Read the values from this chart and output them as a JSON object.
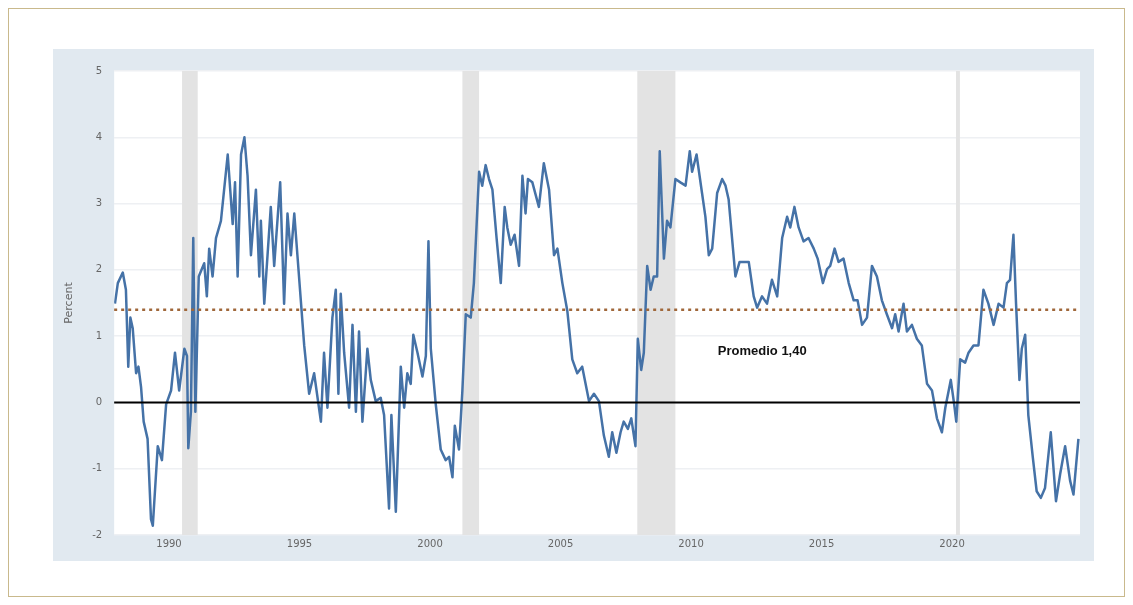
{
  "chart_data": {
    "type": "line",
    "ylabel": "Percent",
    "xlim": [
      1987.9,
      2024.9
    ],
    "xticks": [
      1990,
      1995,
      2000,
      2005,
      2010,
      2015,
      2020
    ],
    "ylim": [
      -2,
      5
    ],
    "yticks": [
      -2,
      -1,
      0,
      1,
      2,
      3,
      4,
      5
    ],
    "grid": "y",
    "legend": false,
    "bands": [
      {
        "axis": "x",
        "from": 1990.5,
        "to": 1991.1,
        "color": "#e3e3e3"
      },
      {
        "axis": "x",
        "from": 2001.24,
        "to": 2001.88,
        "color": "#e3e3e3"
      },
      {
        "axis": "x",
        "from": 2007.94,
        "to": 2009.4,
        "color": "#e3e3e3"
      },
      {
        "axis": "x",
        "from": 2020.15,
        "to": 2020.3,
        "color": "#e3e3e3"
      }
    ],
    "ref_lines": [
      {
        "axis": "y",
        "value": 0,
        "color": "#000000",
        "line_style": "solid"
      },
      {
        "axis": "y",
        "value": 1.4,
        "label": "Promedio 1,40",
        "color": "#a0673a",
        "line_style": "dotted"
      }
    ],
    "series": [
      {
        "color": "#4572a7",
        "x": [
          1987.93,
          1988.04,
          1988.23,
          1988.35,
          1988.44,
          1988.52,
          1988.61,
          1988.74,
          1988.83,
          1988.93,
          1989.03,
          1989.18,
          1989.31,
          1989.38,
          1989.57,
          1989.73,
          1989.89,
          1990.08,
          1990.23,
          1990.39,
          1990.59,
          1990.69,
          1990.74,
          1990.84,
          1990.93,
          1991.01,
          1991.14,
          1991.35,
          1991.45,
          1991.54,
          1991.67,
          1991.8,
          1991.99,
          1992.25,
          1992.44,
          1992.53,
          1992.63,
          1992.76,
          1992.89,
          1993.01,
          1993.14,
          1993.33,
          1993.46,
          1993.52,
          1993.65,
          1993.9,
          1994.03,
          1994.26,
          1994.41,
          1994.54,
          1994.67,
          1994.8,
          1994.92,
          1995.18,
          1995.37,
          1995.56,
          1995.82,
          1995.94,
          1996.07,
          1996.26,
          1996.39,
          1996.49,
          1996.58,
          1996.71,
          1996.9,
          1997.03,
          1997.16,
          1997.28,
          1997.41,
          1997.6,
          1997.73,
          1997.92,
          1998.11,
          1998.24,
          1998.43,
          1998.52,
          1998.69,
          1998.88,
          1999.01,
          1999.13,
          1999.26,
          1999.36,
          1999.52,
          1999.71,
          1999.84,
          1999.94,
          2000.03,
          2000.22,
          2000.41,
          2000.6,
          2000.73,
          2000.86,
          2000.95,
          2001.11,
          2001.24,
          2001.37,
          2001.56,
          2001.68,
          2001.88,
          2002.0,
          2002.13,
          2002.26,
          2002.39,
          2002.55,
          2002.71,
          2002.86,
          2002.96,
          2003.09,
          2003.24,
          2003.41,
          2003.54,
          2003.66,
          2003.75,
          2003.92,
          2004.17,
          2004.36,
          2004.56,
          2004.75,
          2004.88,
          2005.07,
          2005.26,
          2005.45,
          2005.64,
          2005.83,
          2006.09,
          2006.28,
          2006.47,
          2006.66,
          2006.85,
          2006.98,
          2007.14,
          2007.3,
          2007.42,
          2007.58,
          2007.71,
          2007.87,
          2007.96,
          2008.09,
          2008.19,
          2008.32,
          2008.45,
          2008.57,
          2008.7,
          2008.8,
          2008.96,
          2009.08,
          2009.21,
          2009.4,
          2009.59,
          2009.79,
          2009.95,
          2010.04,
          2010.21,
          2010.42,
          2010.55,
          2010.68,
          2010.81,
          2011.0,
          2011.19,
          2011.32,
          2011.44,
          2011.7,
          2011.86,
          2012.21,
          2012.4,
          2012.53,
          2012.72,
          2012.91,
          2013.1,
          2013.3,
          2013.49,
          2013.68,
          2013.8,
          2013.96,
          2014.12,
          2014.31,
          2014.5,
          2014.7,
          2014.85,
          2015.05,
          2015.21,
          2015.33,
          2015.5,
          2015.65,
          2015.84,
          2016.04,
          2016.23,
          2016.38,
          2016.55,
          2016.74,
          2016.93,
          2017.12,
          2017.31,
          2017.5,
          2017.7,
          2017.82,
          2017.95,
          2018.14,
          2018.27,
          2018.46,
          2018.65,
          2018.84,
          2019.04,
          2019.23,
          2019.42,
          2019.61,
          2019.74,
          2019.95,
          2020.08,
          2020.16,
          2020.31,
          2020.5,
          2020.63,
          2020.82,
          2021.01,
          2021.2,
          2021.39,
          2021.59,
          2021.78,
          2021.97,
          2022.1,
          2022.22,
          2022.35,
          2022.45,
          2022.58,
          2022.67,
          2022.8,
          2022.92,
          2023.09,
          2023.24,
          2023.4,
          2023.56,
          2023.78,
          2023.98,
          2024.14,
          2024.33,
          2024.52,
          2024.65,
          2024.84
        ],
        "values": [
          1.49,
          1.8,
          1.96,
          1.7,
          0.54,
          1.28,
          1.12,
          0.44,
          0.54,
          0.23,
          -0.29,
          -0.55,
          -1.76,
          -1.86,
          -0.66,
          -0.87,
          -0.03,
          0.18,
          0.75,
          0.18,
          0.81,
          0.7,
          -0.69,
          -0.14,
          2.48,
          -0.14,
          1.9,
          2.1,
          1.6,
          2.32,
          1.9,
          2.48,
          2.74,
          3.74,
          2.69,
          3.32,
          1.9,
          3.74,
          4.0,
          3.42,
          2.22,
          3.21,
          1.9,
          2.74,
          1.49,
          2.95,
          2.06,
          3.32,
          1.49,
          2.85,
          2.22,
          2.85,
          2.22,
          0.86,
          0.13,
          0.44,
          -0.29,
          0.75,
          -0.08,
          1.28,
          1.7,
          0.13,
          1.64,
          0.75,
          -0.08,
          1.17,
          -0.14,
          1.07,
          -0.29,
          0.81,
          0.34,
          0.02,
          0.07,
          -0.19,
          -1.6,
          -0.19,
          -1.65,
          0.54,
          -0.08,
          0.44,
          0.28,
          1.02,
          0.75,
          0.39,
          0.7,
          2.43,
          0.81,
          -0.03,
          -0.71,
          -0.87,
          -0.82,
          -1.13,
          -0.35,
          -0.71,
          0.18,
          1.33,
          1.28,
          1.8,
          3.48,
          3.27,
          3.58,
          3.37,
          3.21,
          2.48,
          1.8,
          2.95,
          2.64,
          2.38,
          2.53,
          2.06,
          3.42,
          2.85,
          3.37,
          3.32,
          2.95,
          3.61,
          3.21,
          2.22,
          2.32,
          1.8,
          1.38,
          0.65,
          0.44,
          0.54,
          0.02,
          0.13,
          0.02,
          -0.5,
          -0.82,
          -0.45,
          -0.76,
          -0.45,
          -0.29,
          -0.4,
          -0.24,
          -0.66,
          0.96,
          0.49,
          0.75,
          2.06,
          1.7,
          1.9,
          1.9,
          3.79,
          2.17,
          2.74,
          2.64,
          3.37,
          3.32,
          3.27,
          3.79,
          3.48,
          3.74,
          3.16,
          2.8,
          2.22,
          2.32,
          3.16,
          3.37,
          3.27,
          3.06,
          1.9,
          2.12,
          2.12,
          1.6,
          1.43,
          1.6,
          1.49,
          1.85,
          1.6,
          2.48,
          2.8,
          2.64,
          2.95,
          2.64,
          2.43,
          2.48,
          2.32,
          2.17,
          1.8,
          2.01,
          2.06,
          2.32,
          2.12,
          2.17,
          1.8,
          1.54,
          1.54,
          1.17,
          1.28,
          2.06,
          1.9,
          1.54,
          1.33,
          1.12,
          1.33,
          1.07,
          1.49,
          1.07,
          1.17,
          0.96,
          0.86,
          0.28,
          0.18,
          -0.24,
          -0.45,
          -0.08,
          0.34,
          -0.03,
          -0.29,
          0.65,
          0.6,
          0.75,
          0.86,
          0.86,
          1.7,
          1.49,
          1.17,
          1.49,
          1.43,
          1.8,
          1.85,
          2.53,
          1.49,
          0.34,
          0.81,
          1.02,
          -0.19,
          -0.82,
          -1.34,
          -1.44,
          -1.29,
          -0.45,
          -1.49,
          -1.08,
          -0.66,
          -1.18,
          -1.39,
          -0.55
        ]
      }
    ]
  }
}
